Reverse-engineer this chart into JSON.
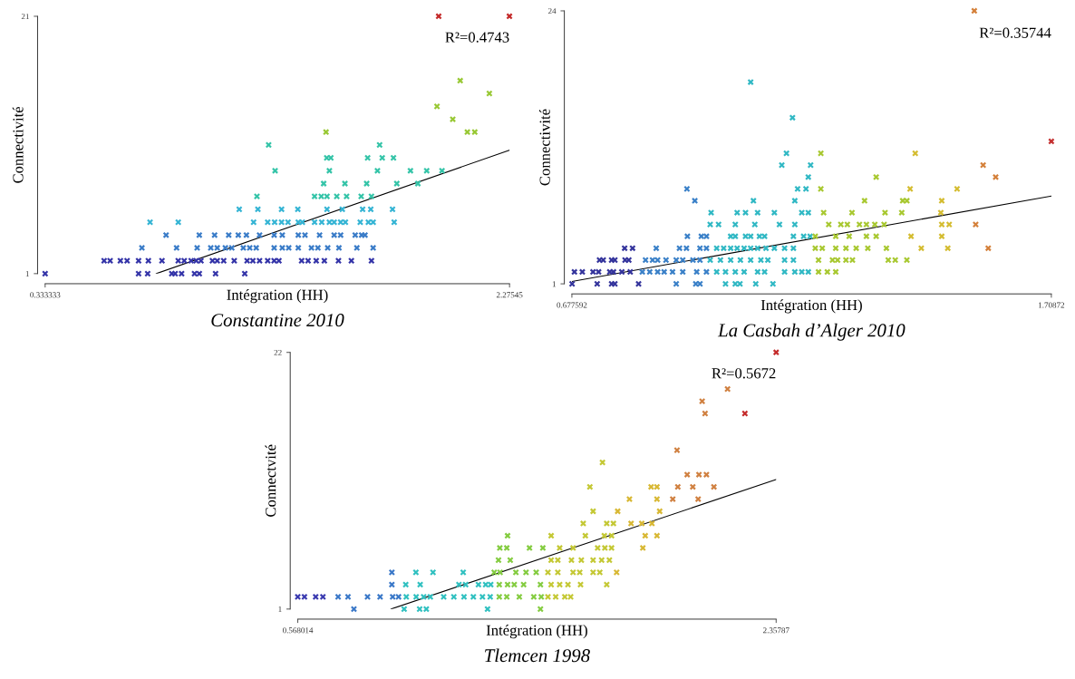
{
  "chart_data": [
    {
      "type": "scatter",
      "title": "Constantine 2010",
      "xlabel": "Intégration (HH)",
      "ylabel": "Connectivité",
      "annotations": [
        "R²=0.4743"
      ],
      "marker": "cross",
      "xlim": [
        0.333333,
        2.27545
      ],
      "ylim": [
        1,
        21
      ],
      "xticks": [
        0.333333,
        2.27545
      ],
      "yticks": [
        1,
        21
      ],
      "series": [
        {
          "color": "#3434a8",
          "x": [
            0.333333,
            0.724,
            0.762,
            0.863,
            0.877,
            0.904,
            0.958,
            0.978,
            1.046,
            1.168,
            0.58,
            0.605,
            0.648,
            0.676,
            0.724,
            0.765,
            0.822,
            0.89,
            0.915,
            0.944,
            0.965,
            0.985,
            1.033,
            1.053,
            1.08,
            1.124,
            1.178,
            1.202,
            1.23,
            1.264,
            1.291,
            1.311,
            1.406,
            1.433,
            1.467,
            1.501,
            1.56,
            1.614,
            1.698
          ],
          "values": [
            1,
            1,
            1,
            1,
            1,
            1,
            1,
            1,
            1,
            1,
            2,
            2,
            2,
            2,
            2,
            2,
            2,
            2,
            2,
            2,
            2,
            2,
            2,
            2,
            2,
            2,
            2,
            2,
            2,
            2,
            2,
            2,
            2,
            2,
            2,
            2,
            2,
            2,
            2
          ]
        },
        {
          "color": "#3a7cc8",
          "x": [
            0.738,
            0.883,
            0.969,
            1.026,
            1.053,
            1.087,
            1.114,
            1.162,
            1.189,
            1.216,
            1.291,
            1.325,
            1.352,
            1.392,
            1.447,
            1.474,
            1.515,
            1.562,
            1.637,
            1.705,
            0.839,
            0.978,
            1.042,
            1.101,
            1.141,
            1.175,
            1.23,
            1.291,
            1.325,
            1.392,
            1.42,
            1.481,
            1.542,
            1.569,
            1.63,
            1.657,
            1.671
          ],
          "values": [
            3,
            3,
            3,
            3,
            3,
            3,
            3,
            3,
            3,
            3,
            3,
            3,
            3,
            3,
            3,
            3,
            3,
            3,
            3,
            3,
            4,
            4,
            4,
            4,
            4,
            4,
            4,
            4,
            4,
            4,
            4,
            4,
            4,
            4,
            4,
            4,
            4
          ]
        },
        {
          "color": "#34b4d4",
          "x": [
            0.772,
            0.89,
            1.205,
            1.264,
            1.293,
            1.322,
            1.349,
            1.392,
            1.409,
            1.46,
            1.49,
            1.522,
            1.542,
            1.569,
            1.589,
            1.651,
            1.685,
            1.705,
            1.793,
            1.145,
            1.223,
            1.322,
            1.39,
            1.512,
            1.576,
            1.661,
            1.695,
            1.786
          ],
          "values": [
            5,
            5,
            5,
            5,
            5,
            5,
            5,
            5,
            5,
            5,
            5,
            5,
            5,
            5,
            5,
            5,
            5,
            5,
            5,
            6,
            6,
            6,
            6,
            6,
            6,
            6,
            6,
            6
          ]
        },
        {
          "color": "#34c4a8",
          "x": [
            1.219,
            1.46,
            1.488,
            1.512,
            1.553,
            1.594,
            1.655,
            1.698,
            1.498,
            1.587,
            1.678,
            1.804,
            1.892,
            1.295,
            1.522,
            1.723,
            1.861,
            1.929,
            1.993,
            1.511,
            1.528,
            1.682,
            1.743,
            1.79,
            1.268,
            1.732
          ],
          "values": [
            7,
            7,
            7,
            7,
            7,
            7,
            7,
            7,
            8,
            8,
            8,
            8,
            8,
            9,
            9,
            9,
            9,
            9,
            9,
            10,
            10,
            10,
            10,
            10,
            11,
            11
          ]
        },
        {
          "color": "#98c834",
          "x": [
            1.508,
            2.099,
            2.13,
            2.038,
            1.972,
            2.191,
            2.069
          ],
          "values": [
            12,
            12,
            12,
            13,
            14,
            15,
            16
          ]
        },
        {
          "color": "#c42a2a",
          "x": [
            1.979,
            2.275
          ],
          "values": [
            21,
            21
          ]
        },
        {
          "type": "line",
          "marker": "none",
          "color": "#000000",
          "x": [
            0.798,
            2.275
          ],
          "values": [
            1,
            10.6
          ]
        }
      ]
    },
    {
      "type": "scatter",
      "title": "La Casbah d’Alger 2010",
      "xlabel": "Intégration (HH)",
      "ylabel": "Connectivité",
      "annotations": [
        "R²=0.35744"
      ],
      "marker": "cross",
      "xlim": [
        0.677592,
        1.70872
      ],
      "ylim": [
        1,
        24
      ],
      "xticks": [
        0.677592,
        1.70872
      ],
      "yticks": [
        1,
        24
      ],
      "series": [
        {
          "color": "#34349c",
          "x": [
            0.678,
            0.732,
            0.763,
            0.77,
            0.821,
            0.683,
            0.7,
            0.723,
            0.735,
            0.759,
            0.767,
            0.785,
            0.803,
            0.737,
            0.745,
            0.763,
            0.77,
            0.792,
            0.8,
            0.791,
            0.808
          ],
          "values": [
            1,
            1,
            1,
            1,
            1,
            2,
            2,
            2,
            2,
            2,
            2,
            2,
            2,
            3,
            3,
            3,
            3,
            3,
            3,
            4,
            4
          ]
        },
        {
          "color": "#3a80c8",
          "x": [
            0.902,
            0.944,
            0.953,
            0.829,
            0.845,
            0.862,
            0.876,
            0.894,
            0.916,
            0.946,
            0.967,
            0.836,
            0.851,
            0.862,
            0.88,
            0.902,
            0.916,
            0.938,
            0.953,
            0.859,
            0.909,
            0.924,
            0.953,
            0.967,
            0.926,
            0.956,
            0.967,
            0.942,
            0.925
          ],
          "values": [
            1,
            1,
            1,
            2,
            2,
            2,
            2,
            2,
            2,
            2,
            2,
            3,
            3,
            3,
            3,
            3,
            3,
            3,
            3,
            4,
            4,
            4,
            4,
            4,
            5,
            5,
            5,
            8,
            9
          ]
        },
        {
          "color": "#30b8c4",
          "x": [
            1.008,
            1.029,
            1.039,
            1.073,
            1.11,
            0.989,
            1.008,
            1.029,
            1.048,
            1.077,
            1.092,
            1.135,
            1.157,
            1.172,
            1.186,
            0.975,
            0.997,
            1.019,
            1.04,
            1.062,
            1.084,
            1.099,
            1.135,
            1.154,
            0.989,
            1.004,
            1.019,
            1.033,
            1.048,
            1.062,
            1.077,
            1.095,
            1.113,
            1.135,
            1.154,
            1.019,
            1.029,
            1.051,
            1.062,
            1.081,
            1.092,
            1.154,
            1.176,
            1.19,
            0.975,
            0.993,
            1.029,
            1.071,
            1.124,
            1.157,
            0.977,
            1.033,
            1.051,
            1.077,
            1.113,
            1.172,
            1.186,
            1.068,
            1.157,
            1.163,
            1.181,
            1.186,
            1.129,
            1.191,
            1.139,
            1.152,
            1.062
          ],
          "values": [
            1,
            1,
            1,
            1,
            1,
            2,
            2,
            2,
            2,
            2,
            2,
            2,
            2,
            2,
            2,
            3,
            3,
            3,
            3,
            3,
            3,
            3,
            3,
            3,
            4,
            4,
            4,
            4,
            4,
            4,
            4,
            4,
            4,
            4,
            4,
            5,
            5,
            5,
            5,
            5,
            5,
            5,
            5,
            5,
            6,
            6,
            6,
            6,
            6,
            6,
            7,
            7,
            7,
            7,
            7,
            7,
            7,
            8,
            8,
            9,
            9,
            10,
            11,
            11,
            12,
            15,
            18
          ]
        },
        {
          "color": "#a8c830",
          "x": [
            1.208,
            1.227,
            1.245,
            1.208,
            1.238,
            1.249,
            1.267,
            1.281,
            1.358,
            1.373,
            1.398,
            1.201,
            1.216,
            1.245,
            1.267,
            1.289,
            1.314,
            1.354,
            1.201,
            1.245,
            1.274,
            1.311,
            1.332,
            1.23,
            1.256,
            1.27,
            1.296,
            1.311,
            1.329,
            1.349,
            1.219,
            1.28,
            1.351,
            1.387,
            1.307,
            1.389,
            1.398,
            1.213,
            1.332,
            1.213
          ],
          "values": [
            2,
            2,
            2,
            3,
            3,
            3,
            3,
            3,
            3,
            3,
            3,
            4,
            4,
            4,
            4,
            4,
            4,
            4,
            5,
            5,
            5,
            5,
            5,
            6,
            6,
            6,
            6,
            6,
            6,
            6,
            7,
            7,
            7,
            7,
            8,
            8,
            8,
            9,
            10,
            12
          ]
        },
        {
          "color": "#d4bc30",
          "x": [
            1.429,
            1.486,
            1.407,
            1.473,
            1.473,
            1.489,
            1.471,
            1.473,
            1.405,
            1.506,
            1.416
          ],
          "values": [
            4,
            4,
            5,
            5,
            6,
            6,
            7,
            8,
            9,
            9,
            12
          ]
        },
        {
          "color": "#d4803a",
          "x": [
            1.573,
            1.546,
            1.589,
            1.562,
            1.543
          ],
          "values": [
            4,
            6,
            10,
            11,
            24
          ]
        },
        {
          "color": "#c43030",
          "x": [
            1.7087
          ],
          "values": [
            13
          ]
        },
        {
          "type": "line",
          "marker": "none",
          "color": "#000000",
          "x": [
            0.677592,
            1.70872
          ],
          "values": [
            1.2,
            8.4
          ]
        }
      ]
    },
    {
      "type": "scatter",
      "title": "Tlemcen 1998",
      "xlabel": "Intégration (HH)",
      "ylabel": "Connectvité",
      "annotations": [
        "R²=0.5672"
      ],
      "marker": "cross",
      "xlim": [
        0.568014,
        2.35787
      ],
      "ylim": [
        1,
        22
      ],
      "xticks": [
        0.568014,
        2.35787
      ],
      "yticks": [
        1,
        22
      ],
      "series": [
        {
          "color": "#3a3ab0",
          "x": [
            0.568014,
            0.593,
            0.635,
            0.662
          ],
          "values": [
            2,
            2,
            2,
            2
          ]
        },
        {
          "color": "#3a78c8",
          "x": [
            0.778,
            0.719,
            0.756,
            0.829,
            0.876,
            0.923,
            0.945,
            0.92,
            0.92
          ],
          "values": [
            1,
            2,
            2,
            2,
            2,
            2,
            2,
            3,
            4
          ]
        },
        {
          "color": "#30c0c0",
          "x": [
            0.966,
            1.024,
            1.049,
            1.278,
            0.974,
            1.011,
            1.039,
            1.064,
            1.114,
            1.152,
            1.19,
            1.225,
            1.259,
            1.288,
            0.972,
            1.026,
            1.171,
            1.196,
            1.244,
            1.271,
            1.29,
            1.01,
            1.074,
            1.187
          ],
          "values": [
            1,
            1,
            1,
            1,
            2,
            2,
            2,
            2,
            2,
            2,
            2,
            2,
            2,
            2,
            3,
            3,
            3,
            3,
            3,
            3,
            3,
            4,
            4,
            4
          ]
        },
        {
          "color": "#84cc40",
          "x": [
            1.476,
            1.322,
            1.35,
            1.397,
            1.451,
            1.479,
            1.322,
            1.353,
            1.378,
            1.413,
            1.476,
            1.303,
            1.325,
            1.384,
            1.422,
            1.46,
            1.319,
            1.363,
            1.324,
            1.35,
            1.435,
            1.485,
            1.353
          ],
          "values": [
            1,
            2,
            2,
            2,
            2,
            2,
            3,
            3,
            3,
            3,
            3,
            4,
            4,
            4,
            4,
            4,
            5,
            5,
            6,
            6,
            6,
            6,
            7
          ]
        },
        {
          "color": "#c4c834",
          "x": [
            1.504,
            1.533,
            1.567,
            1.589,
            1.516,
            1.548,
            1.579,
            1.626,
            1.724,
            1.504,
            1.541,
            1.598,
            1.623,
            1.673,
            1.698,
            1.516,
            1.541,
            1.592,
            1.629,
            1.673,
            1.705,
            1.734,
            1.548,
            1.598,
            1.69,
            1.717,
            1.742,
            1.516,
            1.644,
            1.715,
            1.742,
            1.636,
            1.724,
            1.749,
            1.673,
            1.661,
            1.708
          ],
          "values": [
            2,
            2,
            2,
            2,
            3,
            3,
            3,
            3,
            3,
            4,
            4,
            4,
            4,
            4,
            4,
            5,
            5,
            5,
            5,
            5,
            5,
            5,
            6,
            6,
            6,
            6,
            6,
            7,
            7,
            7,
            7,
            8,
            8,
            8,
            9,
            11,
            13
          ]
        },
        {
          "color": "#d8b834",
          "x": [
            1.761,
            1.859,
            1.868,
            1.912,
            1.815,
            1.855,
            1.893,
            1.765,
            1.922,
            1.809,
            1.912,
            1.89,
            1.912
          ],
          "values": [
            4,
            6,
            7,
            7,
            8,
            8,
            8,
            9,
            9,
            10,
            10,
            11,
            11
          ]
        },
        {
          "color": "#d08040",
          "x": [
            1.971,
            2.066,
            1.99,
            2.046,
            2.125,
            2.025,
            2.069,
            2.097,
            1.987,
            2.092,
            2.081,
            2.176
          ],
          "values": [
            10,
            10,
            11,
            11,
            11,
            12,
            12,
            12,
            14,
            17,
            18,
            19
          ]
        },
        {
          "color": "#c42a2a",
          "x": [
            2.241,
            2.35787
          ],
          "values": [
            17,
            22
          ]
        },
        {
          "type": "line",
          "marker": "none",
          "color": "#000000",
          "x": [
            0.917,
            2.35787
          ],
          "values": [
            1,
            11.6
          ]
        }
      ]
    }
  ]
}
